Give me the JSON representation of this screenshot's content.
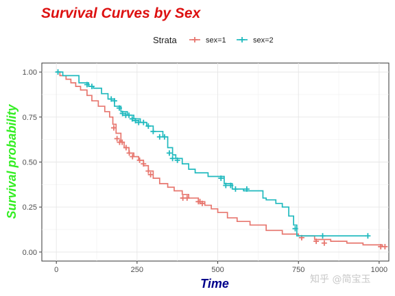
{
  "chart_data": {
    "type": "line",
    "step": true,
    "title": "Survival Curves by Sex",
    "title_color": "#dd1111",
    "xlabel": "Time",
    "xlabel_color": "#00008b",
    "ylabel": "Survival probability",
    "ylabel_color": "#33ee22",
    "xlim": [
      -45,
      1030
    ],
    "ylim": [
      -0.05,
      1.05
    ],
    "xticks": [
      0,
      250,
      500,
      750,
      1000
    ],
    "yticks": [
      0.0,
      0.25,
      0.5,
      0.75,
      1.0
    ],
    "ytick_labels": [
      "0.00",
      "0.25",
      "0.50",
      "0.75",
      "1.00"
    ],
    "grid": true,
    "legend_title": "Strata",
    "legend_position": "top",
    "series": [
      {
        "name": "sex=1",
        "color": "#e7766e",
        "x": [
          0,
          11,
          30,
          45,
          60,
          75,
          95,
          110,
          130,
          150,
          165,
          175,
          185,
          200,
          210,
          225,
          240,
          255,
          270,
          285,
          300,
          320,
          345,
          365,
          390,
          410,
          440,
          460,
          480,
          500,
          530,
          560,
          600,
          650,
          700,
          750,
          800,
          850,
          900,
          950,
          1010
        ],
        "y": [
          1.0,
          0.98,
          0.96,
          0.94,
          0.92,
          0.9,
          0.87,
          0.84,
          0.81,
          0.78,
          0.75,
          0.71,
          0.66,
          0.61,
          0.58,
          0.55,
          0.53,
          0.51,
          0.48,
          0.45,
          0.41,
          0.38,
          0.36,
          0.34,
          0.32,
          0.3,
          0.28,
          0.26,
          0.24,
          0.22,
          0.19,
          0.17,
          0.15,
          0.12,
          0.1,
          0.09,
          0.07,
          0.06,
          0.05,
          0.04,
          0.03
        ],
        "censor_x": [
          178,
          188,
          196,
          204,
          216,
          226,
          236,
          258,
          270,
          285,
          292,
          392,
          405,
          440,
          445,
          452,
          760,
          805,
          830,
          1005,
          1018
        ],
        "censor_y": [
          0.69,
          0.63,
          0.61,
          0.61,
          0.58,
          0.55,
          0.53,
          0.51,
          0.49,
          0.45,
          0.43,
          0.3,
          0.3,
          0.28,
          0.28,
          0.27,
          0.08,
          0.06,
          0.05,
          0.03,
          0.03
        ]
      },
      {
        "name": "sex=2",
        "color": "#1fb9be",
        "x": [
          0,
          20,
          70,
          100,
          115,
          140,
          160,
          180,
          200,
          220,
          240,
          260,
          280,
          300,
          330,
          345,
          360,
          370,
          390,
          410,
          430,
          470,
          520,
          545,
          580,
          640,
          650,
          680,
          700,
          720,
          735,
          745,
          960
        ],
        "y": [
          1.0,
          0.98,
          0.94,
          0.92,
          0.91,
          0.88,
          0.85,
          0.81,
          0.78,
          0.76,
          0.74,
          0.72,
          0.7,
          0.67,
          0.64,
          0.58,
          0.54,
          0.52,
          0.49,
          0.46,
          0.44,
          0.42,
          0.38,
          0.35,
          0.34,
          0.3,
          0.29,
          0.27,
          0.25,
          0.2,
          0.15,
          0.09,
          0.09
        ],
        "censor_x": [
          5,
          95,
          110,
          170,
          180,
          195,
          205,
          215,
          225,
          235,
          245,
          255,
          270,
          285,
          300,
          320,
          335,
          350,
          360,
          375,
          510,
          525,
          540,
          555,
          590,
          740,
          825,
          965
        ],
        "censor_y": [
          1.0,
          0.93,
          0.92,
          0.85,
          0.84,
          0.8,
          0.77,
          0.76,
          0.76,
          0.74,
          0.73,
          0.72,
          0.72,
          0.7,
          0.67,
          0.64,
          0.64,
          0.55,
          0.52,
          0.51,
          0.41,
          0.37,
          0.37,
          0.35,
          0.35,
          0.13,
          0.09,
          0.09
        ]
      }
    ]
  },
  "watermark": "知乎 @简宝玉"
}
